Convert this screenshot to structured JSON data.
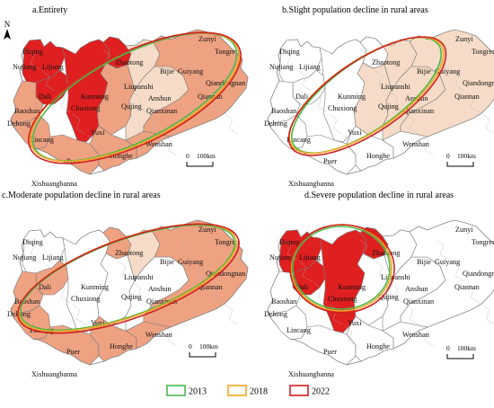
{
  "north_label": "N",
  "colors": {
    "outline": "#7a7a7a",
    "white": "#ffffff",
    "light": "#f6dcc8",
    "medium": "#eea282",
    "severe": "#e02020",
    "ellipse_2013": "#4cb84c",
    "ellipse_2018": "#f5a623",
    "ellipse_2022": "#d02020"
  },
  "panels": [
    {
      "id": "a",
      "title": "a.Entirety"
    },
    {
      "id": "b",
      "title": "b.Slight population decline in rural areas"
    },
    {
      "id": "c",
      "title": "c.Moderate population decline in rural areas"
    },
    {
      "id": "d",
      "title": "d.Severe population decline in rural areas"
    }
  ],
  "places": [
    "Diqing",
    "Nujiang",
    "Lijiang",
    "Dali",
    "Baoshan",
    "Dehong",
    "Lincang",
    "Puer",
    "Xishuangbanna",
    "Kunming",
    "Chuxiong",
    "Yuxi",
    "Honghe",
    "Wenshan",
    "Qujing",
    "Zhaotong",
    "Liupanshi",
    "Anshun",
    "Bijie",
    "Guiyang",
    "Zunyi",
    "Tongren",
    "Qiandongnan",
    "Qiannan",
    "Qianxinan"
  ],
  "scale_bar": {
    "zero": "0",
    "distance": "100km"
  },
  "legend": [
    {
      "year": "2013",
      "color": "#4cb84c"
    },
    {
      "year": "2018",
      "color": "#f5a623"
    },
    {
      "year": "2022",
      "color": "#d02020"
    }
  ]
}
